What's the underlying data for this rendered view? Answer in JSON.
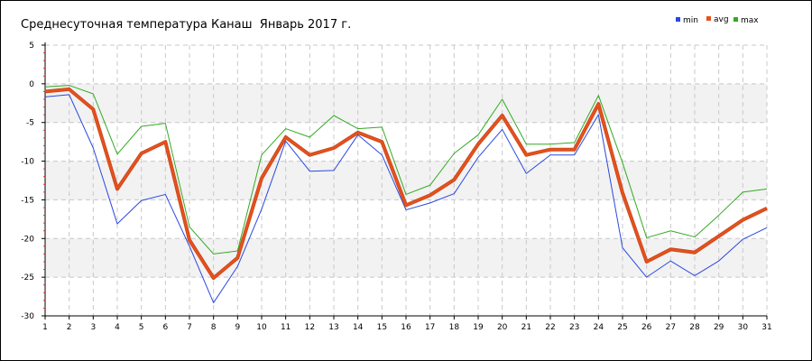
{
  "chart_data": {
    "type": "line",
    "title": "Среднесуточная температура Канаш  Январь 2017 г.",
    "xlabel": "",
    "ylabel": "",
    "x": [
      1,
      2,
      3,
      4,
      5,
      6,
      7,
      8,
      9,
      10,
      11,
      12,
      13,
      14,
      15,
      16,
      17,
      18,
      19,
      20,
      21,
      22,
      23,
      24,
      25,
      26,
      27,
      28,
      29,
      30,
      31
    ],
    "ylim": [
      -30,
      5
    ],
    "yticks": [
      5,
      0,
      -5,
      -10,
      -15,
      -20,
      -25,
      -30
    ],
    "grid": true,
    "legend_position": "top-right",
    "series": [
      {
        "name": "min",
        "color": "#2a48e0",
        "values": [
          -1.7,
          -1.4,
          -8.3,
          -18.1,
          -15.1,
          -14.3,
          -21.0,
          -28.3,
          -23.6,
          -16.2,
          -7.4,
          -11.3,
          -11.2,
          -6.6,
          -9.2,
          -16.3,
          -15.4,
          -14.2,
          -9.5,
          -5.9,
          -11.6,
          -9.2,
          -9.2,
          -4.0,
          -21.2,
          -25.0,
          -22.9,
          -24.8,
          -22.9,
          -20.1,
          -18.6
        ]
      },
      {
        "name": "avg",
        "color": "#e8501e",
        "values": [
          -1.0,
          -0.7,
          -3.3,
          -13.6,
          -9.0,
          -7.5,
          -20.2,
          -25.1,
          -22.5,
          -12.2,
          -6.9,
          -9.2,
          -8.3,
          -6.3,
          -7.5,
          -15.7,
          -14.4,
          -12.4,
          -7.8,
          -4.1,
          -9.2,
          -8.5,
          -8.5,
          -2.6,
          -14.1,
          -23.0,
          -21.4,
          -21.8,
          -19.7,
          -17.6,
          -16.1
        ]
      },
      {
        "name": "max",
        "color": "#33aa22",
        "values": [
          -0.4,
          -0.2,
          -1.3,
          -9.1,
          -5.5,
          -5.1,
          -18.5,
          -22.0,
          -21.6,
          -9.2,
          -5.8,
          -6.9,
          -4.1,
          -5.8,
          -5.6,
          -14.3,
          -13.1,
          -9.0,
          -6.6,
          -2.0,
          -7.8,
          -7.8,
          -7.6,
          -1.5,
          -10.2,
          -19.9,
          -19.0,
          -19.8,
          -17.0,
          -14.0,
          -13.6
        ]
      }
    ]
  }
}
